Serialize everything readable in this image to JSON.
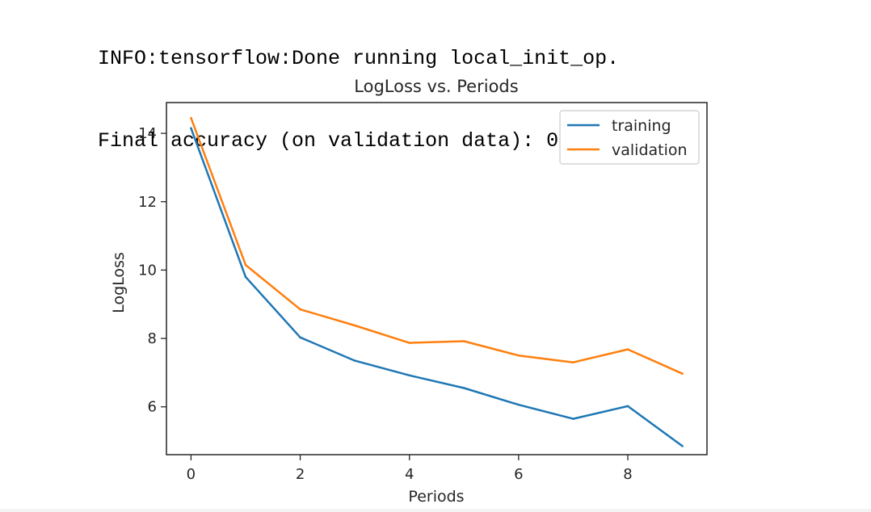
{
  "output": {
    "lines": [
      "INFO:tensorflow:Done running local_init_op.",
      "Final accuracy (on validation data): 0.80"
    ]
  },
  "chart_data": {
    "type": "line",
    "title": "LogLoss vs. Periods",
    "xlabel": "Periods",
    "ylabel": "LogLoss",
    "x": [
      0,
      1,
      2,
      3,
      4,
      5,
      6,
      7,
      8,
      9
    ],
    "xlim": [
      -0.45,
      9.45
    ],
    "ylim": [
      4.6,
      14.9
    ],
    "xticks": [
      "0",
      "2",
      "4",
      "6",
      "8"
    ],
    "yticks": [
      "6",
      "8",
      "10",
      "12",
      "14"
    ],
    "grid": false,
    "legend_position": "upper right",
    "series": [
      {
        "name": "training",
        "color": "#1f77b4",
        "values": [
          14.15,
          9.8,
          8.03,
          7.35,
          6.92,
          6.55,
          6.06,
          5.65,
          6.02,
          4.85
        ]
      },
      {
        "name": "validation",
        "color": "#ff7f0e",
        "values": [
          14.45,
          10.15,
          8.85,
          8.38,
          7.87,
          7.92,
          7.5,
          7.3,
          7.68,
          6.97
        ]
      }
    ]
  }
}
